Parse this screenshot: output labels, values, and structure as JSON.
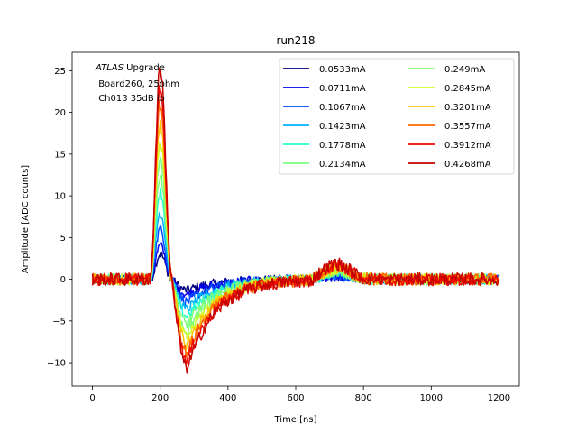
{
  "chart_data": {
    "type": "line",
    "title": "run218",
    "xlabel": "Time [ns]",
    "ylabel": "Amplitude [ADC counts]",
    "xlim": [
      -60,
      1260
    ],
    "ylim": [
      -12.8,
      27.2
    ],
    "xticks": [
      0,
      200,
      400,
      600,
      800,
      1000,
      1200
    ],
    "yticks": [
      -10,
      -5,
      0,
      5,
      10,
      15,
      20,
      25
    ],
    "xtick_labels": [
      "0",
      "200",
      "400",
      "600",
      "800",
      "1000",
      "1200"
    ],
    "ytick_labels": [
      "−10",
      "−5",
      "0",
      "5",
      "10",
      "15",
      "20",
      "25"
    ],
    "grid": false,
    "legend_placement": "top-right",
    "legend_columns": 2,
    "annotation": {
      "atlas": "ATLAS",
      "upgrade": " Upgrade",
      "line2": "Board260, 25ohm",
      "line3": "Ch013 35dB lo"
    },
    "pulse_shape": {
      "baseline": 0,
      "rise_start_ns": 170,
      "peak_ns": 200,
      "zero_cross_ns": 235,
      "undershoot_min_ns": 280,
      "secondary_bump_ns": 720,
      "secondary_bump_amplitude_fraction": 0.075
    },
    "series": [
      {
        "name": "0.0533mA",
        "color": "#00007f",
        "peak": 3.0,
        "min": -1.3
      },
      {
        "name": "0.0711mA",
        "color": "#0000ec",
        "peak": 4.0,
        "min": -1.8
      },
      {
        "name": "0.1067mA",
        "color": "#004cff",
        "peak": 6.0,
        "min": -2.7
      },
      {
        "name": "0.1423mA",
        "color": "#00b0ff",
        "peak": 8.0,
        "min": -3.6
      },
      {
        "name": "0.1778mA",
        "color": "#29ffce",
        "peak": 10.5,
        "min": -4.4
      },
      {
        "name": "0.2134mA",
        "color": "#7dff7a",
        "peak": 12.5,
        "min": -5.3
      },
      {
        "name": "0.249mA",
        "color": "#7dff7a",
        "peak": 14.5,
        "min": -6.2
      },
      {
        "name": "0.2845mA",
        "color": "#ceff29",
        "peak": 16.5,
        "min": -7.0
      },
      {
        "name": "0.3201mA",
        "color": "#ffc400",
        "peak": 18.5,
        "min": -7.9
      },
      {
        "name": "0.3557mA",
        "color": "#ff6800",
        "peak": 21.0,
        "min": -8.8
      },
      {
        "name": "0.3912mA",
        "color": "#f10800",
        "peak": 23.0,
        "min": -9.7
      },
      {
        "name": "0.4268mA",
        "color": "#c70000",
        "peak": 25.5,
        "min": -10.6
      }
    ]
  }
}
